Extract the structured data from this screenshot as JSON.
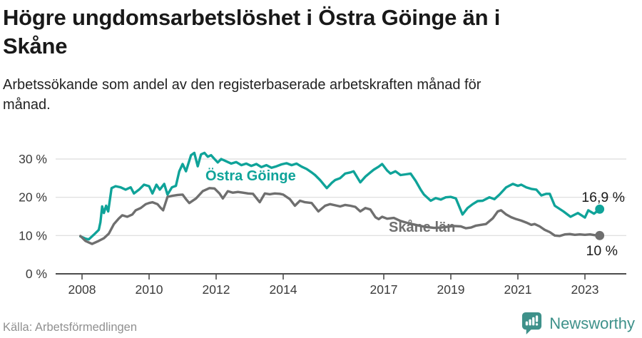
{
  "header": {
    "title": "Högre ungdomsarbetslöshet i Östra Göinge än i\nSkåne",
    "subtitle": "Arbetssökande som andel av den registerbaserade arbetskraften månad för\nmånad."
  },
  "chart_data": {
    "type": "line",
    "title": "Högre ungdomsarbetslöshet i Östra Göinge än i Skåne",
    "subtitle": "Arbetssökande som andel av den registerbaserade arbetskraften månad för månad.",
    "unit": "%",
    "grid": true,
    "legend_position": "inline-labels",
    "x_axis": {
      "range": [
        2007.8,
        2023.7
      ],
      "ticks": [
        {
          "value": 2008,
          "label": "2008"
        },
        {
          "value": 2010,
          "label": "2010"
        },
        {
          "value": 2012,
          "label": "2012"
        },
        {
          "value": 2014,
          "label": "2014"
        },
        {
          "value": 2017,
          "label": "2017"
        },
        {
          "value": 2019,
          "label": "2019"
        },
        {
          "value": 2021,
          "label": "2021"
        },
        {
          "value": 2023,
          "label": "2023"
        }
      ]
    },
    "y_axis": {
      "range": [
        0,
        33
      ],
      "ticks": [
        {
          "value": 0,
          "label": "0 %"
        },
        {
          "value": 10,
          "label": "10 %"
        },
        {
          "value": 20,
          "label": "20 %"
        },
        {
          "value": 30,
          "label": "30 %"
        }
      ]
    },
    "series": [
      {
        "name": "Östra Göinge",
        "color": "#0fa399",
        "end_label": "16,9 %",
        "end_value": 16.9,
        "points": [
          [
            2007.95,
            9.8
          ],
          [
            2008.1,
            9.2
          ],
          [
            2008.2,
            9.0
          ],
          [
            2008.35,
            10.2
          ],
          [
            2008.5,
            11.5
          ],
          [
            2008.55,
            13.5
          ],
          [
            2008.6,
            17.6
          ],
          [
            2008.65,
            15.9
          ],
          [
            2008.72,
            17.8
          ],
          [
            2008.78,
            16.3
          ],
          [
            2008.88,
            22.4
          ],
          [
            2009.0,
            22.9
          ],
          [
            2009.15,
            22.6
          ],
          [
            2009.3,
            22.0
          ],
          [
            2009.45,
            22.6
          ],
          [
            2009.55,
            21.0
          ],
          [
            2009.7,
            22.0
          ],
          [
            2009.85,
            23.3
          ],
          [
            2010.0,
            22.9
          ],
          [
            2010.1,
            21.0
          ],
          [
            2010.22,
            23.3
          ],
          [
            2010.32,
            22.0
          ],
          [
            2010.45,
            23.5
          ],
          [
            2010.55,
            20.7
          ],
          [
            2010.68,
            22.6
          ],
          [
            2010.8,
            23.0
          ],
          [
            2010.9,
            26.8
          ],
          [
            2011.0,
            28.7
          ],
          [
            2011.1,
            26.8
          ],
          [
            2011.25,
            31.0
          ],
          [
            2011.35,
            31.6
          ],
          [
            2011.45,
            28.1
          ],
          [
            2011.55,
            31.2
          ],
          [
            2011.65,
            31.6
          ],
          [
            2011.75,
            30.6
          ],
          [
            2011.85,
            31.0
          ],
          [
            2011.95,
            30.0
          ],
          [
            2012.05,
            29.1
          ],
          [
            2012.15,
            30.0
          ],
          [
            2012.3,
            29.4
          ],
          [
            2012.45,
            28.8
          ],
          [
            2012.6,
            29.2
          ],
          [
            2012.75,
            28.4
          ],
          [
            2012.9,
            28.8
          ],
          [
            2013.05,
            28.2
          ],
          [
            2013.2,
            28.7
          ],
          [
            2013.35,
            27.9
          ],
          [
            2013.5,
            28.4
          ],
          [
            2013.65,
            27.7
          ],
          [
            2013.8,
            28.1
          ],
          [
            2013.95,
            28.6
          ],
          [
            2014.1,
            28.9
          ],
          [
            2014.25,
            28.4
          ],
          [
            2014.4,
            28.8
          ],
          [
            2014.55,
            28.0
          ],
          [
            2014.7,
            27.4
          ],
          [
            2014.85,
            26.5
          ],
          [
            2014.95,
            25.8
          ],
          [
            2015.1,
            24.5
          ],
          [
            2015.3,
            22.4
          ],
          [
            2015.45,
            23.8
          ],
          [
            2015.55,
            24.5
          ],
          [
            2015.7,
            25.0
          ],
          [
            2015.85,
            26.2
          ],
          [
            2016.0,
            26.5
          ],
          [
            2016.1,
            26.8
          ],
          [
            2016.3,
            23.9
          ],
          [
            2016.45,
            25.4
          ],
          [
            2016.6,
            26.5
          ],
          [
            2016.7,
            27.2
          ],
          [
            2016.85,
            28.0
          ],
          [
            2016.95,
            28.7
          ],
          [
            2017.1,
            27.0
          ],
          [
            2017.2,
            26.2
          ],
          [
            2017.35,
            26.8
          ],
          [
            2017.5,
            25.8
          ],
          [
            2017.65,
            26.0
          ],
          [
            2017.8,
            26.2
          ],
          [
            2017.95,
            24.3
          ],
          [
            2018.1,
            22.0
          ],
          [
            2018.2,
            20.7
          ],
          [
            2018.4,
            19.1
          ],
          [
            2018.55,
            19.8
          ],
          [
            2018.7,
            19.4
          ],
          [
            2018.85,
            20.0
          ],
          [
            2019.0,
            20.1
          ],
          [
            2019.15,
            19.7
          ],
          [
            2019.35,
            15.5
          ],
          [
            2019.5,
            17.2
          ],
          [
            2019.65,
            18.2
          ],
          [
            2019.8,
            19.0
          ],
          [
            2019.95,
            19.1
          ],
          [
            2020.15,
            20.0
          ],
          [
            2020.3,
            19.5
          ],
          [
            2020.45,
            20.7
          ],
          [
            2020.65,
            22.6
          ],
          [
            2020.85,
            23.5
          ],
          [
            2021.0,
            23.0
          ],
          [
            2021.1,
            23.3
          ],
          [
            2021.25,
            22.6
          ],
          [
            2021.4,
            22.2
          ],
          [
            2021.55,
            22.0
          ],
          [
            2021.7,
            20.5
          ],
          [
            2021.85,
            20.9
          ],
          [
            2021.95,
            20.9
          ],
          [
            2022.1,
            17.8
          ],
          [
            2022.36,
            16.3
          ],
          [
            2022.57,
            14.9
          ],
          [
            2022.79,
            15.9
          ],
          [
            2023.0,
            14.7
          ],
          [
            2023.1,
            16.6
          ],
          [
            2023.27,
            15.7
          ],
          [
            2023.44,
            16.9
          ]
        ]
      },
      {
        "name": "Skåne län",
        "color": "#6f6f6f",
        "end_label": "10 %",
        "end_value": 10.0,
        "points": [
          [
            2007.95,
            9.9
          ],
          [
            2008.1,
            8.6
          ],
          [
            2008.3,
            7.8
          ],
          [
            2008.5,
            8.6
          ],
          [
            2008.65,
            9.3
          ],
          [
            2008.8,
            10.5
          ],
          [
            2008.95,
            13.0
          ],
          [
            2009.1,
            14.5
          ],
          [
            2009.2,
            15.3
          ],
          [
            2009.35,
            14.9
          ],
          [
            2009.5,
            15.5
          ],
          [
            2009.6,
            16.6
          ],
          [
            2009.75,
            17.2
          ],
          [
            2009.9,
            18.2
          ],
          [
            2010.0,
            18.5
          ],
          [
            2010.1,
            18.7
          ],
          [
            2010.25,
            18.2
          ],
          [
            2010.35,
            17.2
          ],
          [
            2010.42,
            16.6
          ],
          [
            2010.55,
            20.1
          ],
          [
            2010.7,
            20.4
          ],
          [
            2010.85,
            20.6
          ],
          [
            2011.0,
            20.7
          ],
          [
            2011.1,
            19.5
          ],
          [
            2011.2,
            18.5
          ],
          [
            2011.4,
            19.7
          ],
          [
            2011.6,
            21.6
          ],
          [
            2011.8,
            22.4
          ],
          [
            2011.95,
            22.3
          ],
          [
            2012.1,
            21.0
          ],
          [
            2012.2,
            19.7
          ],
          [
            2012.35,
            21.6
          ],
          [
            2012.5,
            21.2
          ],
          [
            2012.65,
            21.4
          ],
          [
            2012.8,
            21.2
          ],
          [
            2012.95,
            21.0
          ],
          [
            2013.1,
            20.9
          ],
          [
            2013.3,
            18.7
          ],
          [
            2013.45,
            21.0
          ],
          [
            2013.6,
            20.8
          ],
          [
            2013.75,
            21.0
          ],
          [
            2013.9,
            20.9
          ],
          [
            2014.0,
            20.7
          ],
          [
            2014.2,
            19.5
          ],
          [
            2014.35,
            17.8
          ],
          [
            2014.5,
            19.1
          ],
          [
            2014.65,
            18.7
          ],
          [
            2014.85,
            18.5
          ],
          [
            2015.05,
            16.3
          ],
          [
            2015.25,
            17.8
          ],
          [
            2015.4,
            18.2
          ],
          [
            2015.55,
            17.9
          ],
          [
            2015.7,
            17.6
          ],
          [
            2015.85,
            18.0
          ],
          [
            2016.0,
            17.8
          ],
          [
            2016.15,
            17.5
          ],
          [
            2016.3,
            16.3
          ],
          [
            2016.45,
            17.2
          ],
          [
            2016.6,
            16.8
          ],
          [
            2016.75,
            14.8
          ],
          [
            2016.85,
            14.3
          ],
          [
            2016.95,
            14.9
          ],
          [
            2017.1,
            14.4
          ],
          [
            2017.3,
            14.6
          ],
          [
            2017.5,
            13.8
          ],
          [
            2017.7,
            13.3
          ],
          [
            2017.9,
            12.9
          ],
          [
            2018.1,
            12.5
          ],
          [
            2018.3,
            12.2
          ],
          [
            2018.5,
            12.0
          ],
          [
            2018.7,
            12.1
          ],
          [
            2018.9,
            12.3
          ],
          [
            2019.1,
            12.5
          ],
          [
            2019.3,
            12.4
          ],
          [
            2019.45,
            11.9
          ],
          [
            2019.6,
            12.1
          ],
          [
            2019.75,
            12.6
          ],
          [
            2019.9,
            12.8
          ],
          [
            2020.05,
            13.0
          ],
          [
            2020.25,
            14.5
          ],
          [
            2020.4,
            16.3
          ],
          [
            2020.5,
            16.6
          ],
          [
            2020.65,
            15.5
          ],
          [
            2020.8,
            14.8
          ],
          [
            2020.95,
            14.3
          ],
          [
            2021.1,
            13.9
          ],
          [
            2021.25,
            13.4
          ],
          [
            2021.4,
            12.8
          ],
          [
            2021.5,
            13.0
          ],
          [
            2021.65,
            12.4
          ],
          [
            2021.8,
            11.5
          ],
          [
            2021.95,
            10.9
          ],
          [
            2022.1,
            10.0
          ],
          [
            2022.25,
            9.9
          ],
          [
            2022.4,
            10.3
          ],
          [
            2022.55,
            10.4
          ],
          [
            2022.7,
            10.2
          ],
          [
            2022.85,
            10.3
          ],
          [
            2023.0,
            10.2
          ],
          [
            2023.15,
            10.3
          ],
          [
            2023.3,
            10.1
          ],
          [
            2023.44,
            10.0
          ]
        ]
      }
    ]
  },
  "footer": {
    "source": "Källa: Arbetsförmedlingen",
    "brand": "Newsworthy",
    "brand_color": "#3e918a"
  }
}
